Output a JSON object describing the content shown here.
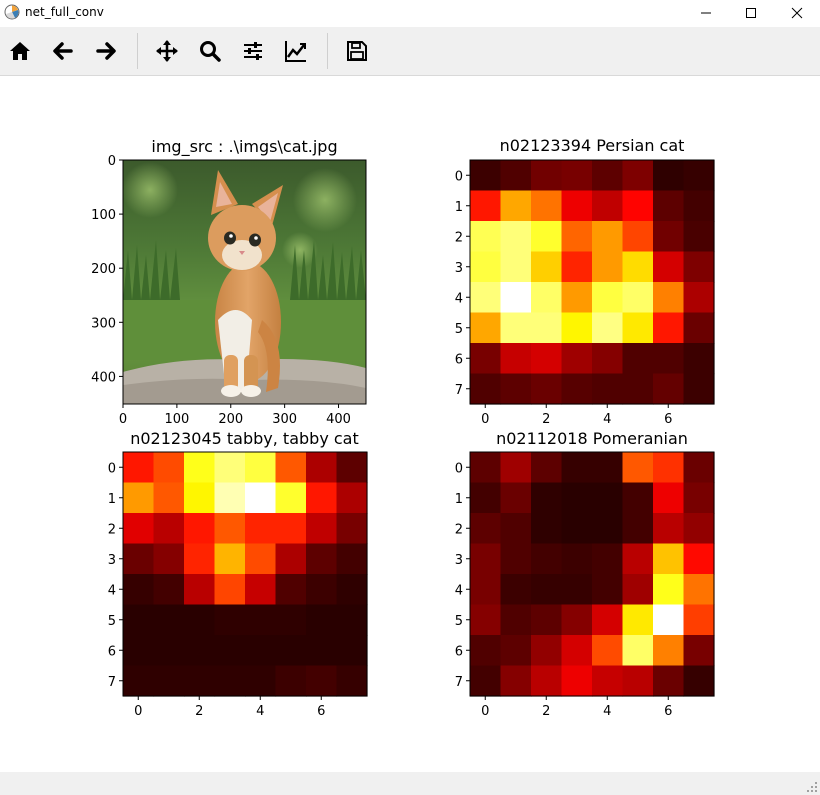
{
  "window": {
    "title": "net_full_conv",
    "app_icon": "matplotlib-icon",
    "controls": [
      "minimize-icon",
      "maximize-icon",
      "close-icon"
    ]
  },
  "toolbar": {
    "buttons": [
      {
        "name": "home-button",
        "icon": "home-icon"
      },
      {
        "name": "back-button",
        "icon": "arrow-left-icon"
      },
      {
        "name": "forward-button",
        "icon": "arrow-right-icon"
      },
      {
        "name": "pan-button",
        "icon": "move-icon"
      },
      {
        "name": "zoom-button",
        "icon": "magnifier-icon"
      },
      {
        "name": "subplots-button",
        "icon": "sliders-icon"
      },
      {
        "name": "axes-button",
        "icon": "line-chart-icon"
      },
      {
        "name": "save-button",
        "icon": "floppy-disk-icon"
      }
    ]
  },
  "chart_data": [
    {
      "type": "image",
      "title": "img_src : .\\imgs\\cat.jpg",
      "content": "photo of an orange kitten sitting on a rock in front of green grass",
      "xlim": [
        0,
        451
      ],
      "ylim": [
        451,
        0
      ],
      "xticks": [
        "0",
        "100",
        "200",
        "300",
        "400"
      ],
      "yticks": [
        "0",
        "100",
        "200",
        "300",
        "400"
      ]
    },
    {
      "type": "heatmap",
      "title": "n02123394 Persian cat",
      "colormap": "hot",
      "xticks": [
        "0",
        "2",
        "4",
        "6"
      ],
      "yticks": [
        "0",
        "1",
        "2",
        "3",
        "4",
        "5",
        "6",
        "7"
      ],
      "values": [
        [
          0.05,
          0.08,
          0.13,
          0.14,
          0.1,
          0.15,
          0.03,
          0.04
        ],
        [
          0.38,
          0.6,
          0.52,
          0.32,
          0.25,
          0.35,
          0.1,
          0.06
        ],
        [
          0.82,
          0.86,
          0.78,
          0.5,
          0.58,
          0.45,
          0.13,
          0.07
        ],
        [
          0.8,
          0.86,
          0.66,
          0.4,
          0.58,
          0.68,
          0.28,
          0.15
        ],
        [
          0.86,
          1.0,
          0.84,
          0.58,
          0.8,
          0.84,
          0.54,
          0.22
        ],
        [
          0.6,
          0.86,
          0.86,
          0.72,
          0.87,
          0.7,
          0.38,
          0.12
        ],
        [
          0.14,
          0.26,
          0.28,
          0.2,
          0.16,
          0.08,
          0.08,
          0.05
        ],
        [
          0.08,
          0.1,
          0.12,
          0.09,
          0.08,
          0.08,
          0.11,
          0.05
        ]
      ]
    },
    {
      "type": "heatmap",
      "title": "n02123045 tabby, tabby cat",
      "colormap": "hot",
      "xticks": [
        "0",
        "2",
        "4",
        "6"
      ],
      "yticks": [
        "0",
        "1",
        "2",
        "3",
        "4",
        "5",
        "6",
        "7"
      ],
      "values": [
        [
          0.38,
          0.46,
          0.76,
          0.86,
          0.8,
          0.48,
          0.22,
          0.1
        ],
        [
          0.58,
          0.48,
          0.72,
          0.92,
          1.0,
          0.78,
          0.38,
          0.22
        ],
        [
          0.3,
          0.24,
          0.38,
          0.48,
          0.4,
          0.4,
          0.25,
          0.14
        ],
        [
          0.12,
          0.16,
          0.4,
          0.62,
          0.46,
          0.22,
          0.1,
          0.06
        ],
        [
          0.04,
          0.06,
          0.24,
          0.45,
          0.26,
          0.08,
          0.05,
          0.03
        ],
        [
          0.02,
          0.02,
          0.02,
          0.03,
          0.03,
          0.03,
          0.02,
          0.02
        ],
        [
          0.02,
          0.02,
          0.02,
          0.02,
          0.02,
          0.02,
          0.02,
          0.02
        ],
        [
          0.03,
          0.03,
          0.03,
          0.03,
          0.03,
          0.05,
          0.06,
          0.04
        ]
      ]
    },
    {
      "type": "heatmap",
      "title": "n02112018 Pomeranian",
      "colormap": "hot",
      "xticks": [
        "0",
        "2",
        "4",
        "6"
      ],
      "yticks": [
        "0",
        "1",
        "2",
        "3",
        "4",
        "5",
        "6",
        "7"
      ],
      "values": [
        [
          0.1,
          0.2,
          0.1,
          0.04,
          0.04,
          0.48,
          0.42,
          0.12
        ],
        [
          0.06,
          0.12,
          0.03,
          0.02,
          0.02,
          0.06,
          0.32,
          0.14
        ],
        [
          0.1,
          0.08,
          0.03,
          0.02,
          0.02,
          0.06,
          0.24,
          0.18
        ],
        [
          0.14,
          0.08,
          0.06,
          0.05,
          0.06,
          0.24,
          0.64,
          0.36
        ],
        [
          0.14,
          0.05,
          0.04,
          0.04,
          0.06,
          0.2,
          0.76,
          0.52
        ],
        [
          0.16,
          0.08,
          0.1,
          0.16,
          0.28,
          0.7,
          1.0,
          0.44
        ],
        [
          0.08,
          0.1,
          0.18,
          0.28,
          0.46,
          0.84,
          0.54,
          0.14
        ],
        [
          0.06,
          0.16,
          0.24,
          0.32,
          0.26,
          0.24,
          0.12,
          0.04
        ]
      ]
    }
  ]
}
